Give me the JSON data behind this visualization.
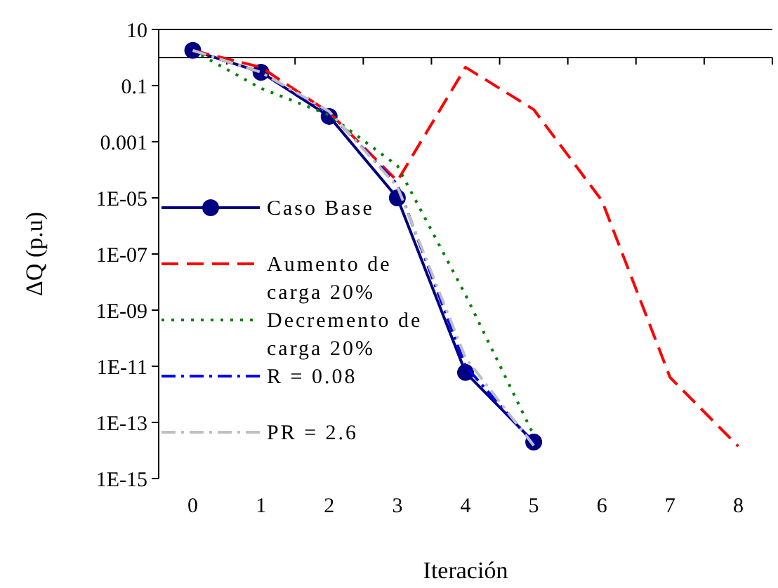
{
  "chart_data": {
    "type": "line",
    "xlabel": "Iteración",
    "ylabel": "ΔQ (p.u)",
    "categories": [
      "0",
      "1",
      "2",
      "3",
      "4",
      "5",
      "6",
      "7",
      "8"
    ],
    "log": "y",
    "ylim": [
      1e-15,
      10
    ],
    "yticks": [
      10,
      0.1,
      0.001,
      {
        "value": 1e-05,
        "label": "1E-05"
      },
      {
        "value": 1e-07,
        "label": "1E-07"
      },
      {
        "value": 1e-09,
        "label": "1E-09"
      },
      {
        "value": 1e-11,
        "label": "1E-11"
      },
      {
        "value": 1e-13,
        "label": "1E-13"
      },
      {
        "value": 1e-15,
        "label": "1E-15"
      }
    ],
    "grid": false,
    "legend": "left",
    "ref_lines": [
      {
        "axis": "y",
        "value": 1,
        "color": "#000000"
      }
    ],
    "series": [
      {
        "name": "Caso Base",
        "color": "#000080",
        "marker": "circle",
        "line_style": "solid",
        "values": [
          1.8,
          0.3,
          0.008,
          1e-05,
          6e-12,
          2e-14,
          null,
          null,
          null
        ]
      },
      {
        "name": "Aumento de carga 20%",
        "color": "#ff0000",
        "marker": "none",
        "line_style": "dashed",
        "values": [
          1.8,
          0.45,
          0.011,
          4e-05,
          0.45,
          0.014,
          8e-06,
          4e-12,
          1.4e-14
        ]
      },
      {
        "name": "Decremento de carga 20%",
        "color": "#008000",
        "marker": "none",
        "line_style": "dotted",
        "values": [
          1.8,
          0.08,
          0.009,
          0.00014,
          3.5e-09,
          3.5e-14,
          null,
          null,
          null
        ]
      },
      {
        "name": "R = 0.08",
        "color": "#0000ff",
        "marker": "none",
        "line_style": "dashdot",
        "values": [
          1.8,
          0.3,
          0.011,
          3e-05,
          1e-11,
          1.8e-14,
          null,
          null,
          null
        ]
      },
      {
        "name": "PR = 2.6",
        "color": "#c0c0c0",
        "marker": "none",
        "line_style": "dashdot",
        "values": [
          1.8,
          0.3,
          0.012,
          2.5e-05,
          2e-11,
          1.5e-14,
          null,
          null,
          null
        ]
      }
    ]
  }
}
